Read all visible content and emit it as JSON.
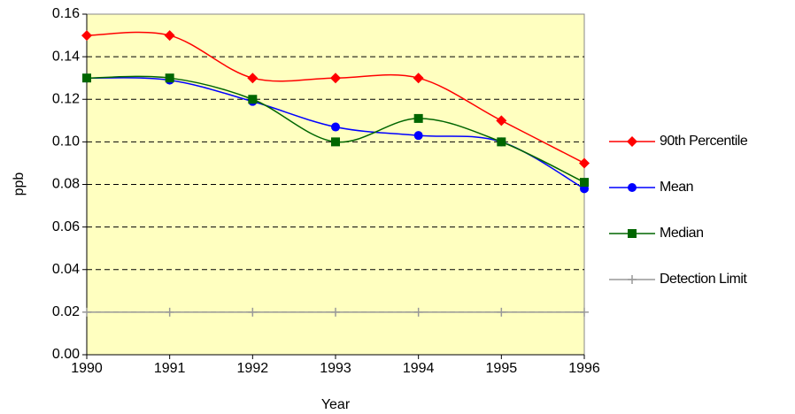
{
  "chart_data": {
    "type": "line",
    "y_label": "ppb",
    "x_label": "Year",
    "categories": [
      "1990",
      "1991",
      "1992",
      "1993",
      "1994",
      "1995",
      "1996"
    ],
    "series": [
      {
        "name": "90th Percentile",
        "color": "#ff0000",
        "marker": "diamond",
        "values": [
          0.15,
          0.15,
          0.13,
          0.13,
          0.13,
          0.11,
          0.09
        ]
      },
      {
        "name": "Mean",
        "color": "#0000ff",
        "marker": "circle",
        "values": [
          0.13,
          0.129,
          0.119,
          0.107,
          0.103,
          0.1,
          0.078
        ]
      },
      {
        "name": "Median",
        "color": "#006600",
        "marker": "square",
        "values": [
          0.13,
          0.13,
          0.12,
          0.1,
          0.111,
          0.1,
          0.081
        ]
      },
      {
        "name": "Detection Limit",
        "color": "#999999",
        "marker": "plus",
        "values": [
          0.02,
          0.02,
          0.02,
          0.02,
          0.02,
          0.02,
          0.02
        ]
      }
    ],
    "ylim": [
      0,
      0.16
    ],
    "yticks": [
      {
        "value": 0,
        "label": "0.00"
      },
      {
        "value": 0.02,
        "label": "0.02"
      },
      {
        "value": 0.04,
        "label": "0.04"
      },
      {
        "value": 0.06,
        "label": "0.06"
      },
      {
        "value": 0.08,
        "label": "0.08"
      },
      {
        "value": 0.1,
        "label": "0.10"
      },
      {
        "value": 0.12,
        "label": "0.12"
      },
      {
        "value": 0.14,
        "label": "0.14"
      },
      {
        "value": 0.16,
        "label": "0.16"
      }
    ],
    "grid": true,
    "background": "#ffffc0",
    "legend": "right"
  }
}
